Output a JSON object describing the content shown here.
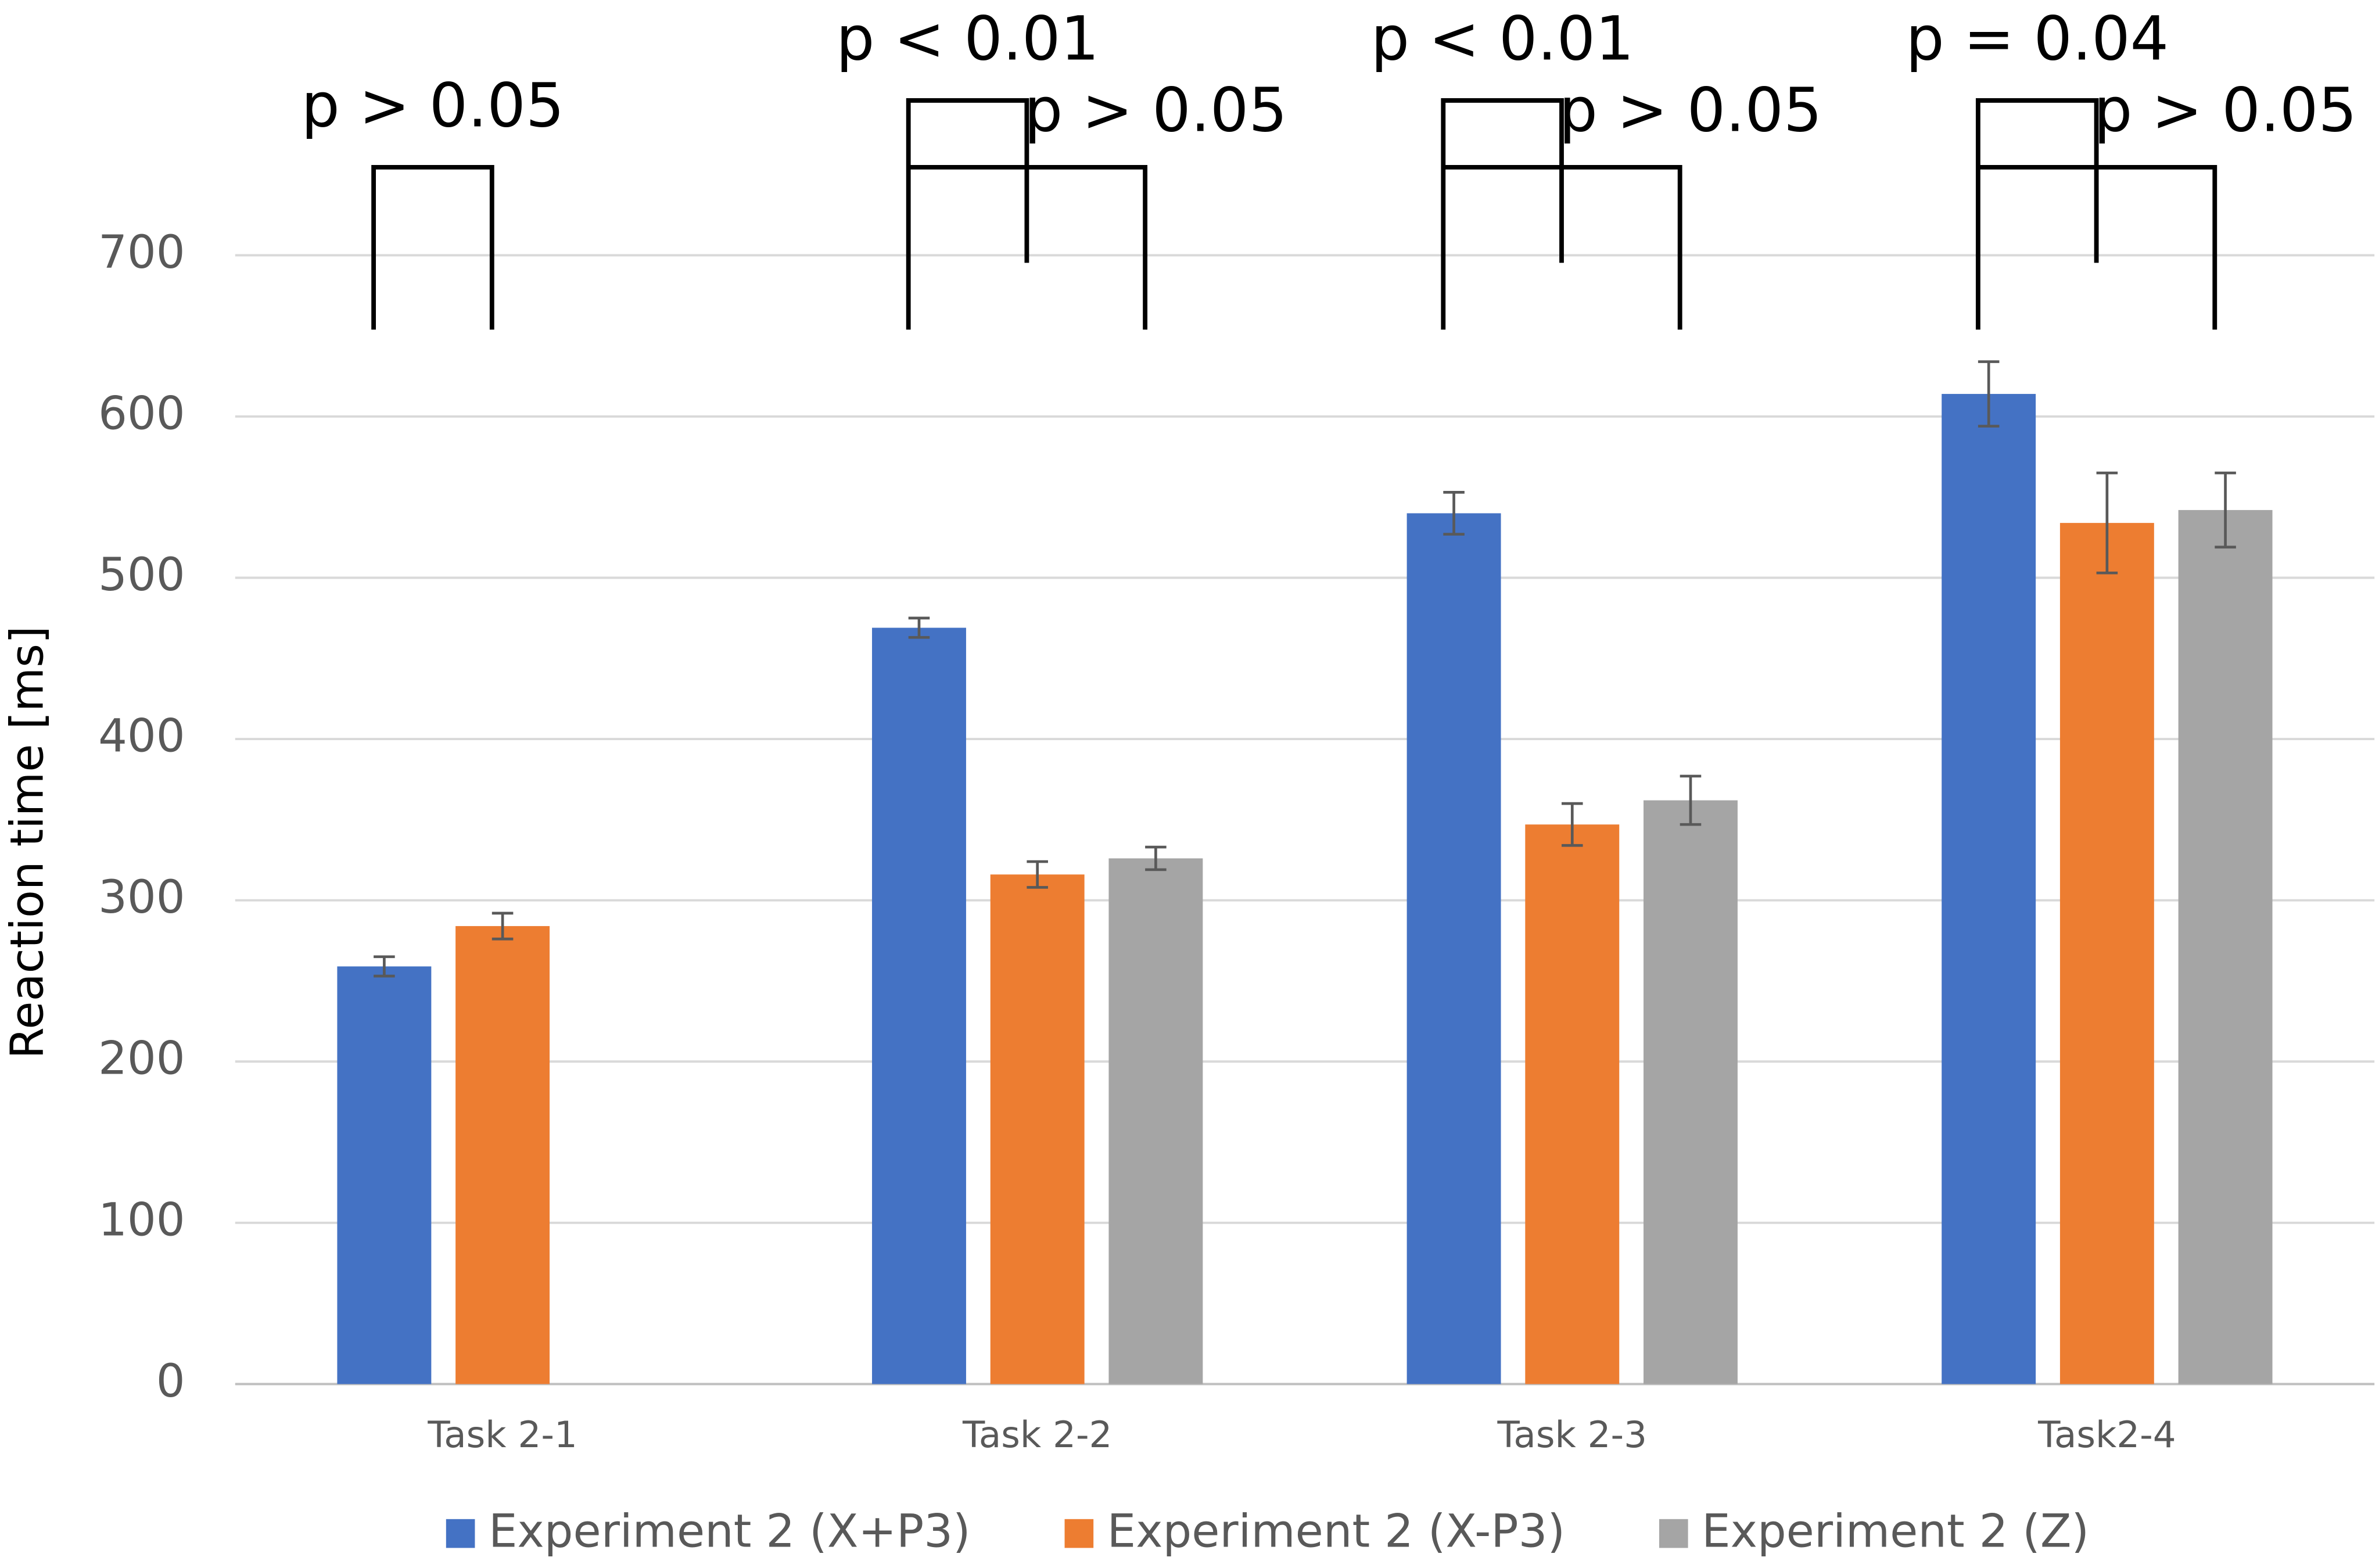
{
  "chart_data": {
    "type": "bar",
    "y_label": "Reaction time [ms]",
    "categories": [
      "Task 2-1",
      "Task 2-2",
      "Task 2-3",
      "Task2-4"
    ],
    "series": [
      {
        "name": "Experiment 2 (X+P3)",
        "color": "#4472c4",
        "values": [
          259,
          469,
          540,
          614
        ],
        "errors": [
          6,
          6,
          13,
          20
        ]
      },
      {
        "name": "Experiment 2 (X-P3)",
        "color": "#ed7d31",
        "values": [
          284,
          316,
          347,
          534
        ],
        "errors": [
          8,
          8,
          13,
          31
        ]
      },
      {
        "name": "Experiment 2 (Z)",
        "color": "#a5a5a5",
        "values": [
          null,
          326,
          362,
          542
        ],
        "errors": [
          null,
          7,
          15,
          23
        ]
      }
    ],
    "comparisons": [
      [
        "p > 0.05"
      ],
      [
        "p < 0.01",
        "p > 0.05"
      ],
      [
        "p < 0.01",
        "p > 0.05"
      ],
      [
        "p = 0.04",
        "p > 0.05"
      ]
    ],
    "ylim": [
      0,
      700
    ],
    "yticks": [
      0,
      100,
      200,
      300,
      400,
      500,
      600,
      700
    ],
    "grid": true,
    "legend": "bottom"
  }
}
